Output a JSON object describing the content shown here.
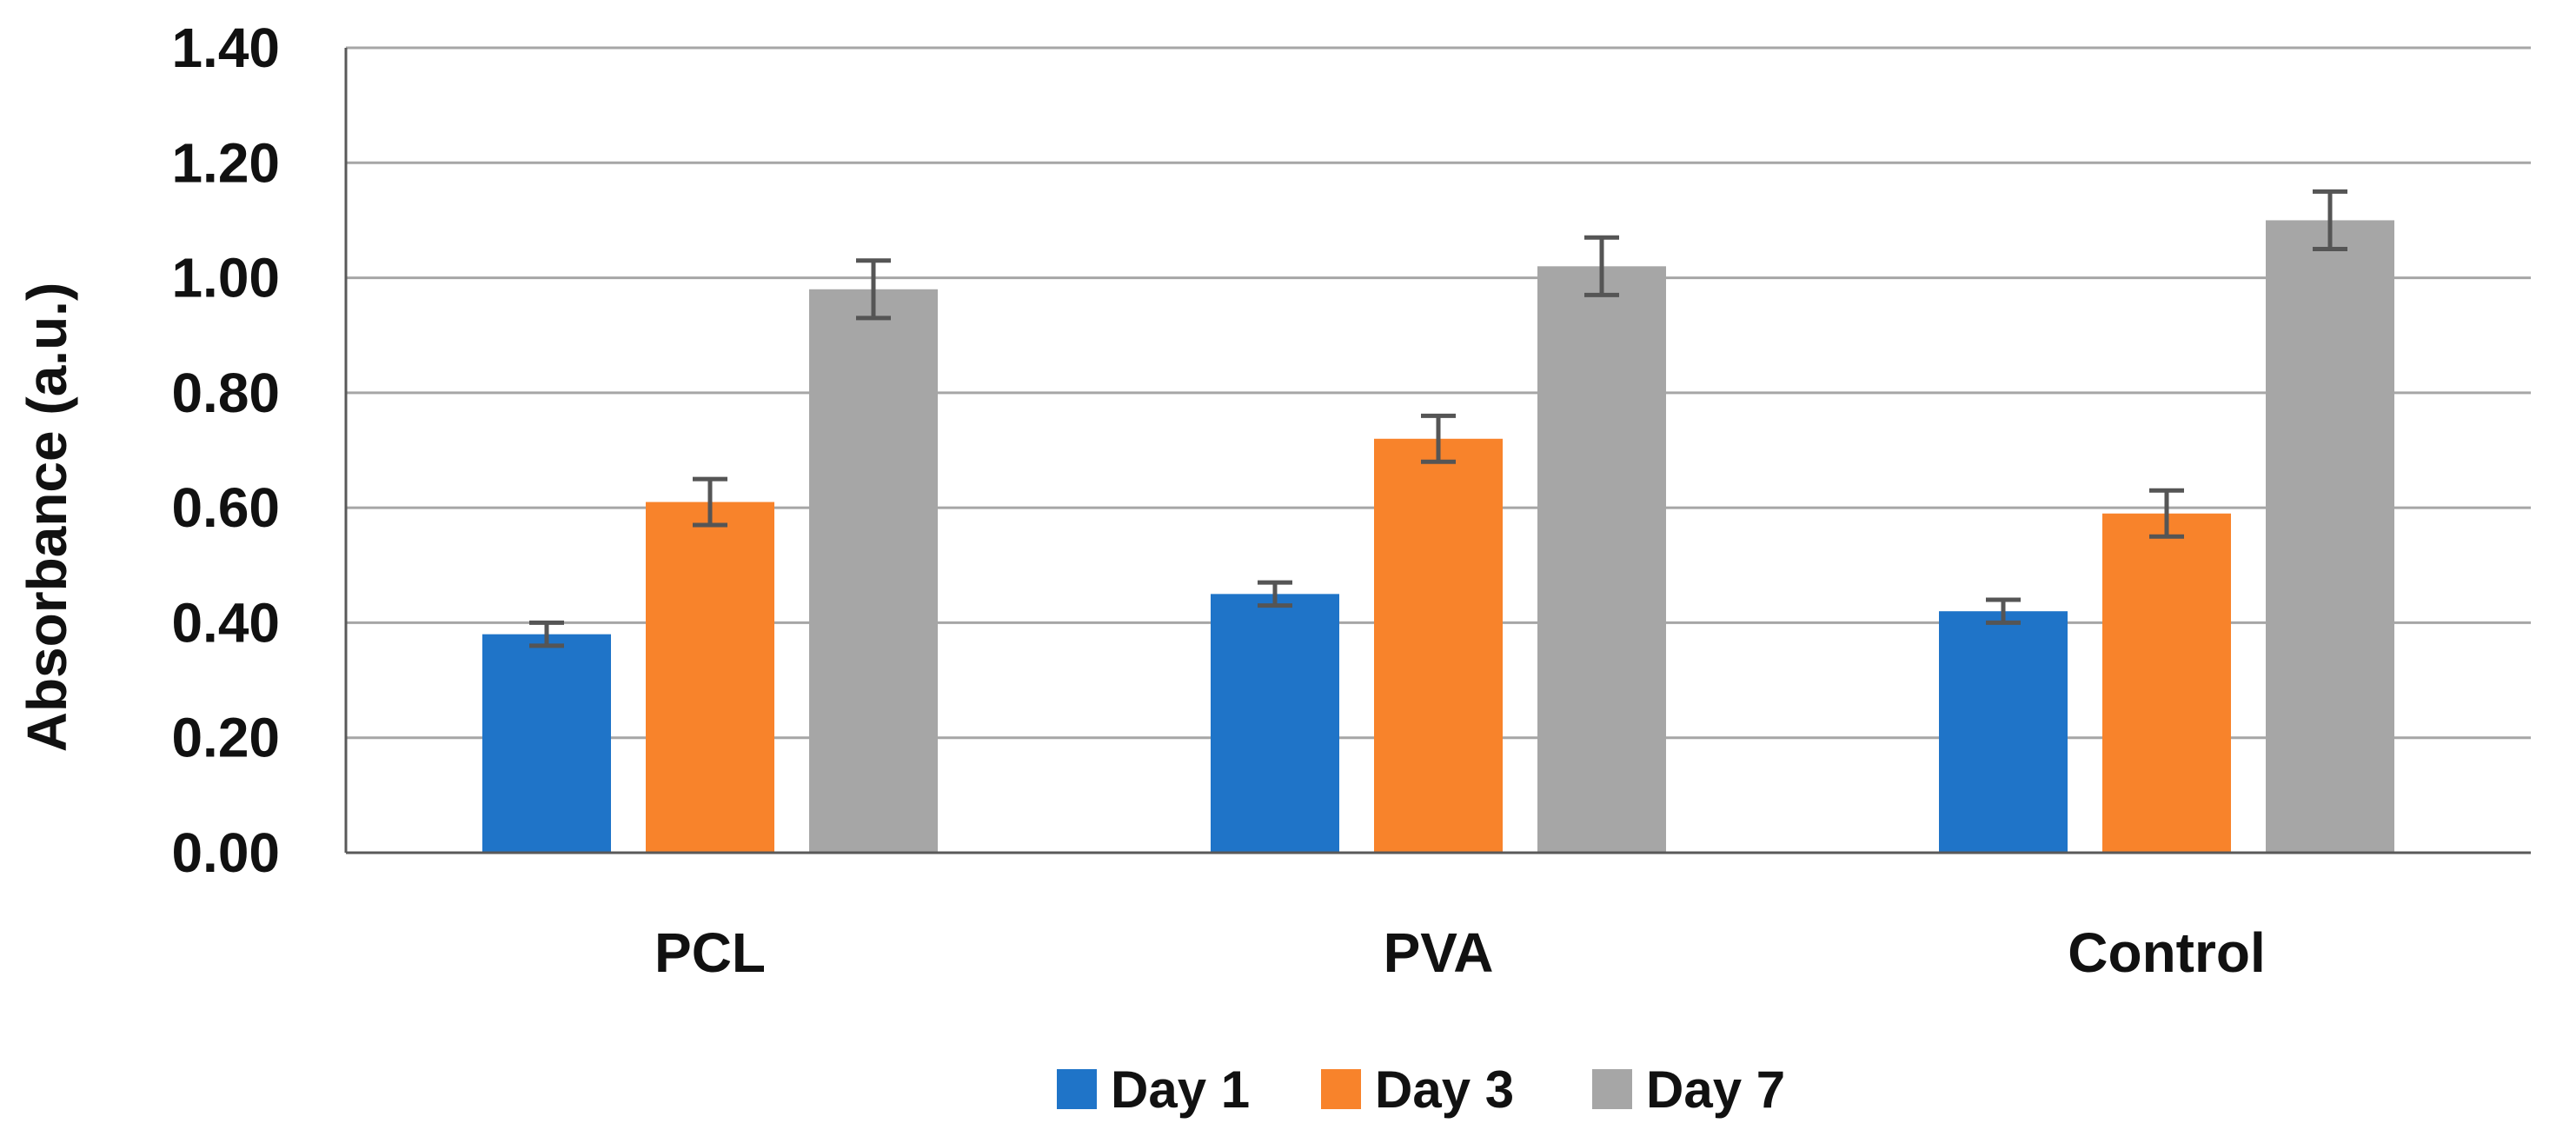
{
  "chart_data": {
    "type": "bar",
    "title": "",
    "xlabel": "",
    "ylabel": "Absorbance (a.u.)",
    "ylim": [
      0,
      1.4
    ],
    "yticks": [
      0.0,
      0.2,
      0.4,
      0.6,
      0.8,
      1.0,
      1.2,
      1.4
    ],
    "ytick_labels": [
      "0.00",
      "0.20",
      "0.40",
      "0.60",
      "0.80",
      "1.00",
      "1.20",
      "1.40"
    ],
    "grid": true,
    "legend_position": "bottom",
    "categories": [
      "PCL",
      "PVA",
      "Control"
    ],
    "series": [
      {
        "name": "Day 1",
        "color": "#1f74c8",
        "values": [
          0.38,
          0.45,
          0.42
        ],
        "errors": [
          0.02,
          0.02,
          0.02
        ]
      },
      {
        "name": "Day 3",
        "color": "#f8832b",
        "values": [
          0.61,
          0.72,
          0.59
        ],
        "errors": [
          0.04,
          0.04,
          0.04
        ]
      },
      {
        "name": "Day 7",
        "color": "#a6a6a6",
        "values": [
          0.98,
          1.02,
          1.1
        ],
        "errors": [
          0.05,
          0.05,
          0.05
        ]
      }
    ],
    "error_bar_color": "#555555",
    "gridline_color": "#a6a6a6",
    "axis_color": "#595959"
  }
}
